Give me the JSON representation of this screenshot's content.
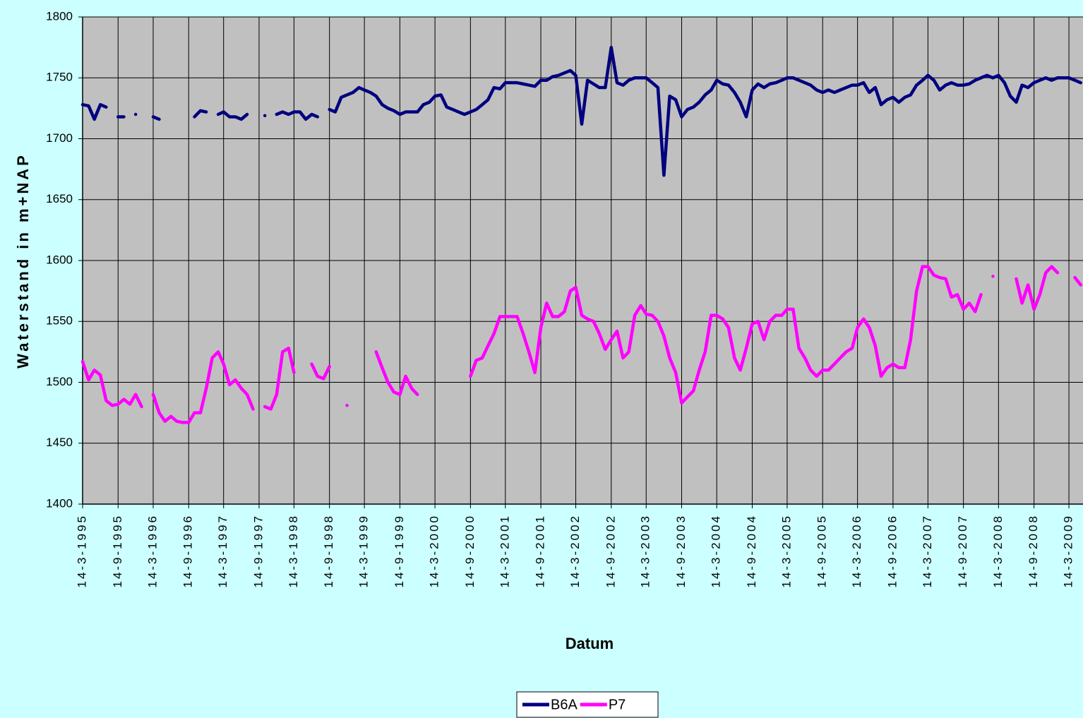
{
  "chart_data": {
    "type": "line",
    "x_label": "Datum",
    "y_label": "Waterstand in m+NAP",
    "x": [
      "14-3-1995",
      "14-4-1995",
      "14-5-1995",
      "14-6-1995",
      "14-7-1995",
      "14-8-1995",
      "14-9-1995",
      "14-10-1995",
      "14-11-1995",
      "14-12-1995",
      "14-1-1996",
      "14-2-1996",
      "14-3-1996",
      "14-4-1996",
      "14-5-1996",
      "14-6-1996",
      "14-7-1996",
      "14-8-1996",
      "14-9-1996",
      "14-10-1996",
      "14-11-1996",
      "14-12-1996",
      "14-1-1997",
      "14-2-1997",
      "14-3-1997",
      "14-4-1997",
      "14-5-1997",
      "14-6-1997",
      "14-7-1997",
      "14-8-1997",
      "14-9-1997",
      "14-10-1997",
      "14-11-1997",
      "14-12-1997",
      "14-1-1998",
      "14-2-1998",
      "14-3-1998",
      "14-4-1998",
      "14-5-1998",
      "14-6-1998",
      "14-7-1998",
      "14-8-1998",
      "14-9-1998",
      "14-10-1998",
      "14-11-1998",
      "14-12-1998",
      "14-1-1999",
      "14-2-1999",
      "14-3-1999",
      "14-4-1999",
      "14-5-1999",
      "14-6-1999",
      "14-7-1999",
      "14-8-1999",
      "14-9-1999",
      "14-10-1999",
      "14-11-1999",
      "14-12-1999",
      "14-1-2000",
      "14-2-2000",
      "14-3-2000",
      "14-4-2000",
      "14-5-2000",
      "14-6-2000",
      "14-7-2000",
      "14-8-2000",
      "14-9-2000",
      "14-10-2000",
      "14-11-2000",
      "14-12-2000",
      "14-1-2001",
      "14-2-2001",
      "14-3-2001",
      "14-4-2001",
      "14-5-2001",
      "14-6-2001",
      "14-7-2001",
      "14-8-2001",
      "14-9-2001",
      "14-10-2001",
      "14-11-2001",
      "14-12-2001",
      "14-1-2002",
      "14-2-2002",
      "14-3-2002",
      "14-4-2002",
      "14-5-2002",
      "14-6-2002",
      "14-7-2002",
      "14-8-2002",
      "14-9-2002",
      "14-10-2002",
      "14-11-2002",
      "14-12-2002",
      "14-1-2003",
      "14-2-2003",
      "14-3-2003",
      "14-4-2003",
      "14-5-2003",
      "14-6-2003",
      "14-7-2003",
      "14-8-2003",
      "14-9-2003",
      "14-10-2003",
      "14-11-2003",
      "14-12-2003",
      "14-1-2004",
      "14-2-2004",
      "14-3-2004",
      "14-4-2004",
      "14-5-2004",
      "14-6-2004",
      "14-7-2004",
      "14-8-2004",
      "14-9-2004",
      "14-10-2004",
      "14-11-2004",
      "14-12-2004",
      "14-1-2005",
      "14-2-2005",
      "14-3-2005",
      "14-4-2005",
      "14-5-2005",
      "14-6-2005",
      "14-7-2005",
      "14-8-2005",
      "14-9-2005",
      "14-10-2005",
      "14-11-2005",
      "14-12-2005",
      "14-1-2006",
      "14-2-2006",
      "14-3-2006",
      "14-4-2006",
      "14-5-2006",
      "14-6-2006",
      "14-7-2006",
      "14-8-2006",
      "14-9-2006",
      "14-10-2006",
      "14-11-2006",
      "14-12-2006",
      "14-1-2007",
      "14-2-2007",
      "14-3-2007",
      "14-4-2007",
      "14-5-2007",
      "14-6-2007",
      "14-7-2007",
      "14-8-2007",
      "14-9-2007",
      "14-10-2007",
      "14-11-2007",
      "14-12-2007",
      "14-1-2008",
      "14-2-2008",
      "14-3-2008",
      "14-4-2008",
      "14-5-2008",
      "14-6-2008",
      "14-7-2008",
      "14-8-2008",
      "14-9-2008",
      "14-10-2008",
      "14-11-2008",
      "14-12-2008",
      "14-1-2009",
      "14-2-2009",
      "14-3-2009",
      "14-4-2009",
      "14-5-2009"
    ],
    "series": [
      {
        "name": "B6A",
        "color": "#000080",
        "values": [
          1728,
          1727,
          1716,
          1728,
          1726,
          null,
          1718,
          1718,
          null,
          1720,
          null,
          null,
          1718,
          1716,
          null,
          null,
          null,
          null,
          null,
          1718,
          1723,
          1722,
          null,
          1720,
          1722,
          1718,
          1718,
          1716,
          1720,
          null,
          null,
          1719,
          null,
          1720,
          1722,
          1720,
          1722,
          1722,
          1716,
          1720,
          1718,
          null,
          1724,
          1722,
          1734,
          1736,
          1738,
          1742,
          1740,
          1738,
          1735,
          1728,
          1725,
          1723,
          1720,
          1722,
          1722,
          1722,
          1728,
          1730,
          1735,
          1736,
          1726,
          1724,
          1722,
          1720,
          1722,
          1724,
          1728,
          1732,
          1742,
          1741,
          1746,
          1746,
          1746,
          1745,
          1744,
          1743,
          1748,
          1748,
          1751,
          1752,
          1754,
          1756,
          1752,
          1712,
          1748,
          1745,
          1742,
          1742,
          1775,
          1746,
          1744,
          1748,
          1750,
          1750,
          1750,
          1746,
          1742,
          1670,
          1735,
          1732,
          1718,
          1724,
          1726,
          1730,
          1736,
          1740,
          1748,
          1745,
          1744,
          1738,
          1730,
          1718,
          1740,
          1745,
          1742,
          1745,
          1746,
          1748,
          1750,
          1750,
          1748,
          1746,
          1744,
          1740,
          1738,
          1740,
          1738,
          1740,
          1742,
          1744,
          1744,
          1746,
          1738,
          1742,
          1728,
          1732,
          1734,
          1730,
          1734,
          1736,
          1744,
          1748,
          1752,
          1748,
          1740,
          1744,
          1746,
          1744,
          1744,
          1745,
          1748,
          1750,
          1752,
          1750,
          1752,
          1746,
          1735,
          1730,
          1744,
          1742,
          1746,
          1748,
          1750,
          1748,
          1750,
          1750,
          1750,
          1748,
          1746
        ]
      },
      {
        "name": "P7",
        "color": "#ff00ff",
        "values": [
          1517,
          1502,
          1510,
          1506,
          1485,
          1481,
          1482,
          1486,
          1482,
          1490,
          1480,
          null,
          1490,
          1475,
          1468,
          1472,
          1468,
          1467,
          1467,
          1475,
          1475,
          1495,
          1520,
          1525,
          1515,
          1498,
          1502,
          1495,
          1490,
          1478,
          null,
          1480,
          1478,
          1490,
          1525,
          1528,
          1508,
          null,
          null,
          1515,
          1505,
          1503,
          1513,
          null,
          null,
          1481,
          null,
          null,
          null,
          null,
          1525,
          1512,
          1500,
          1492,
          1490,
          1505,
          1495,
          1490,
          null,
          null,
          null,
          null,
          null,
          null,
          null,
          null,
          1505,
          1518,
          1520,
          1530,
          1540,
          1554,
          1554,
          1554,
          1554,
          1540,
          1525,
          1508,
          1545,
          1565,
          1554,
          1554,
          1558,
          1575,
          1578,
          1555,
          1552,
          1550,
          1540,
          1527,
          1535,
          1542,
          1520,
          1525,
          1555,
          1563,
          1556,
          1555,
          1550,
          1538,
          1520,
          1508,
          1483,
          1488,
          1493,
          1510,
          1525,
          1555,
          1555,
          1552,
          1545,
          1520,
          1510,
          1528,
          1548,
          1550,
          1535,
          1550,
          1555,
          1555,
          1560,
          1560,
          1528,
          1520,
          1510,
          1505,
          1510,
          1510,
          1515,
          1520,
          1525,
          1528,
          1545,
          1552,
          1545,
          1530,
          1505,
          1512,
          1515,
          1512,
          1512,
          1535,
          1575,
          1595,
          1595,
          1588,
          1586,
          1585,
          1570,
          1572,
          1560,
          1565,
          1558,
          1572,
          null,
          1587,
          null,
          null,
          null,
          1585,
          1565,
          1580,
          1560,
          1572,
          1590,
          1595,
          1590,
          null,
          null,
          1586,
          1580
        ]
      }
    ],
    "xlim": [
      "14-3-1995",
      "26-5-2009"
    ],
    "xticks": [
      "14-3-1995",
      "14-9-1995",
      "14-3-1996",
      "14-9-1996",
      "14-3-1997",
      "14-9-1997",
      "14-3-1998",
      "14-9-1998",
      "14-3-1999",
      "14-9-1999",
      "14-3-2000",
      "14-9-2000",
      "14-3-2001",
      "14-9-2001",
      "14-3-2002",
      "14-9-2002",
      "14-3-2003",
      "14-9-2003",
      "14-3-2004",
      "14-9-2004",
      "14-3-2005",
      "14-9-2005",
      "14-3-2006",
      "14-9-2006",
      "14-3-2007",
      "14-9-2007",
      "14-3-2008",
      "14-9-2008",
      "14-3-2009"
    ],
    "ylim": [
      1400,
      1800
    ],
    "yticks": [
      1400,
      1450,
      1500,
      1550,
      1600,
      1650,
      1700,
      1750,
      1800
    ],
    "grid": true,
    "legend": "bottom"
  }
}
